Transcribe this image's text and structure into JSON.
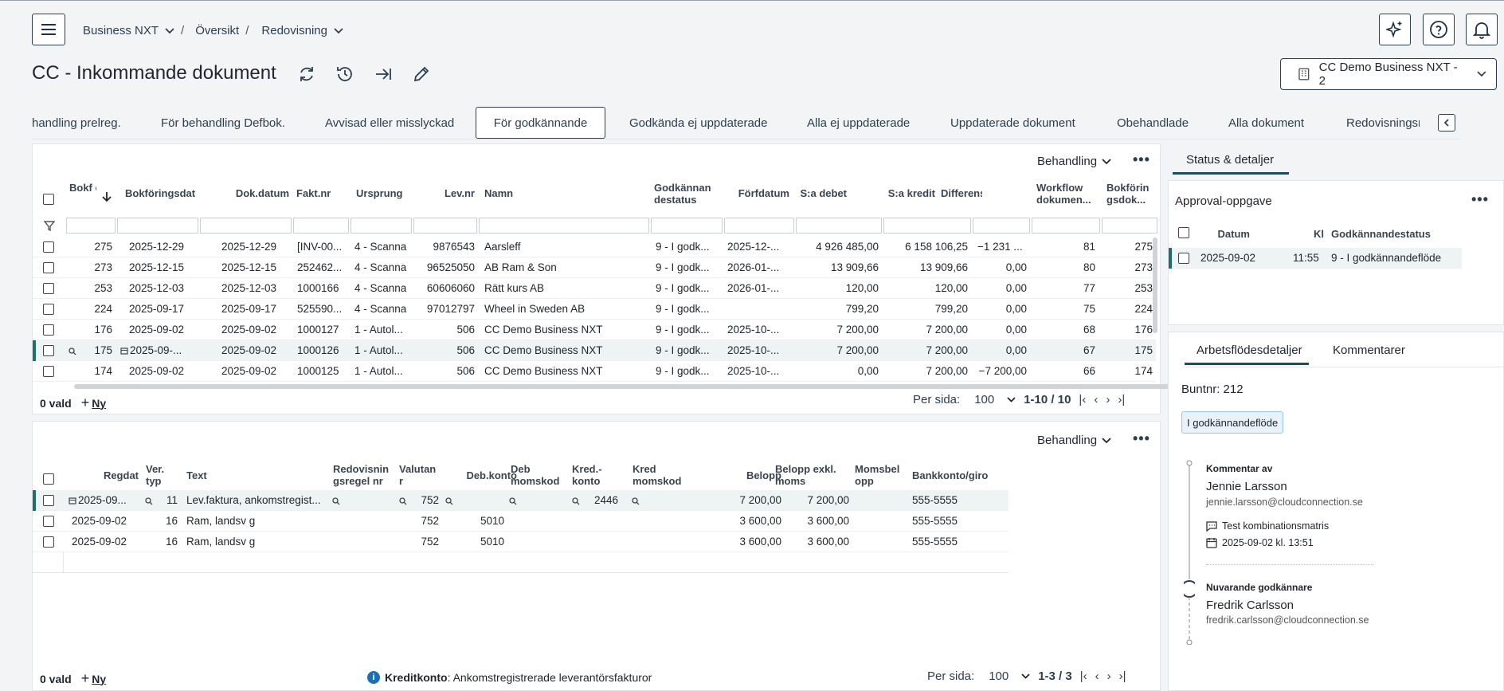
{
  "breadcrumb": {
    "company": "Business NXT",
    "overview": "Översikt",
    "section": "Redovisning"
  },
  "page": {
    "title": "CC - Inkommande dokument"
  },
  "company_selector": {
    "label": "CC Demo Business NXT - 2"
  },
  "tabs": [
    "handling prelreg.",
    "För behandling Defbok.",
    "Avvisad eller misslyckad",
    "För godkännande",
    "Godkända ej uppdaterade",
    "Alla ej uppdaterade",
    "Uppdaterade dokument",
    "Obehandlade",
    "Alla dokument",
    "Redovisningsre"
  ],
  "active_tab": "För godkännande",
  "top_grid": {
    "menu_label": "Behandling",
    "columns": [
      "Bokf öri...",
      "Bokföringsdat",
      "Dok.datum",
      "Fakt.nr",
      "Ursprung",
      "Lev.nr",
      "Namn",
      "Godkännan destatus",
      "Förfdatum",
      "S:a debet",
      "S:a kredit",
      "Differens",
      "Workflow dokumen...",
      "Bokförin gsdok..."
    ],
    "rows": [
      [
        "275",
        "2025-12-29",
        "2025-12-29",
        "[INV-00...",
        "4 - Scanna",
        "9876543",
        "Aarsleff",
        "9 - I godk...",
        "2025-12-...",
        "4 926 485,00",
        "6 158 106,25",
        "−1 231 ...",
        "81",
        "275"
      ],
      [
        "273",
        "2025-12-15",
        "2025-12-15",
        "252462...",
        "4 - Scanna",
        "96525050",
        "AB Ram & Son",
        "9 - I godk...",
        "2026-01-...",
        "13 909,66",
        "13 909,66",
        "0,00",
        "80",
        "273"
      ],
      [
        "253",
        "2025-12-03",
        "2025-12-03",
        "1000166",
        "4 - Scanna",
        "60606060",
        "Rätt kurs AB",
        "9 - I godk...",
        "2026-01-...",
        "120,00",
        "120,00",
        "0,00",
        "77",
        "253"
      ],
      [
        "224",
        "2025-09-17",
        "2025-09-17",
        "525590...",
        "4 - Scanna",
        "97012797",
        "Wheel in Sweden AB",
        "9 - I godk...",
        "",
        "799,20",
        "799,20",
        "0,00",
        "75",
        "224"
      ],
      [
        "176",
        "2025-09-02",
        "2025-09-02",
        "1000127",
        "1 - Autol...",
        "506",
        "CC Demo Business NXT",
        "9 - I godk...",
        "2025-10-...",
        "7 200,00",
        "7 200,00",
        "0,00",
        "68",
        "176"
      ],
      [
        "175",
        "2025-09-...",
        "2025-09-02",
        "1000126",
        "1 - Autol...",
        "506",
        "CC Demo Business NXT",
        "9 - I godk...",
        "2025-10-...",
        "7 200,00",
        "7 200,00",
        "0,00",
        "67",
        "175"
      ],
      [
        "174",
        "2025-09-02",
        "2025-09-02",
        "1000125",
        "1 - Autol...",
        "506",
        "CC Demo Business NXT",
        "9 - I godk...",
        "2025-10-...",
        "0,00",
        "7 200,00",
        "−7 200,00",
        "66",
        "174"
      ]
    ],
    "selected_count": "0 vald",
    "new_label": "Ny",
    "per_page_label": "Per sida:",
    "per_page": "100",
    "range": "1-10 / 10"
  },
  "bottom_grid": {
    "menu_label": "Behandling",
    "columns": [
      "Regdat",
      "Ver. typ",
      "Text",
      "Redovisnin gsregel nr",
      "Valutan r",
      "Deb.konto",
      "Deb momskod",
      "Kred.- konto",
      "Kred momskod",
      "Belopp",
      "Belopp exkl. moms",
      "Momsbel opp",
      "Bankkonto/giro"
    ],
    "rows": [
      [
        "2025-09...",
        "11",
        "Lev.faktura, ankomstregist...",
        "",
        "752",
        "",
        "",
        "2446",
        "",
        "7 200,00",
        "7 200,00",
        "",
        "555-5555"
      ],
      [
        "2025-09-02",
        "16",
        "Ram, landsv g",
        "",
        "752",
        "5010",
        "",
        "",
        "",
        "3 600,00",
        "3 600,00",
        "",
        "555-5555"
      ],
      [
        "2025-09-02",
        "16",
        "Ram, landsv g",
        "",
        "752",
        "5010",
        "",
        "",
        "",
        "3 600,00",
        "3 600,00",
        "",
        "555-5555"
      ]
    ],
    "selected_count": "0 vald",
    "new_label": "Ny",
    "info_label": "Kreditkonto",
    "info_text": ": Ankomstregistrerade leverantörsfakturor",
    "per_page_label": "Per sida:",
    "per_page": "100",
    "range": "1-3 / 3"
  },
  "side": {
    "tab": "Status & detaljer",
    "approval_title": "Approval-oppgave",
    "approval_columns": [
      "Datum",
      "Kl",
      "Godkännandestatus"
    ],
    "approval_row": [
      "2025-09-02",
      "11:55",
      "9 - I godkännandeflöde"
    ],
    "detail_tabs": [
      "Arbetsflödesdetaljer",
      "Kommentarer"
    ],
    "batch": "Buntnr: 212",
    "status_chip": "I godkännandeflöde",
    "comment_header": "Kommentar av",
    "comment_name": "Jennie Larsson",
    "comment_email": "jennie.larsson@cloudconnection.se",
    "comment_text": "Test kombinationsmatris",
    "comment_date": "2025-09-02 kl. 13:51",
    "approver_header": "Nuvarande godkännare",
    "approver_name": "Fredrik Carlsson",
    "approver_email": "fredrik.carlsson@cloudconnection.se"
  },
  "colors": {
    "primary": "#2d3e50",
    "accent": "#1a6fb5",
    "chip_bg": "#e7f2fb",
    "selected_row": "#eef4f3"
  }
}
